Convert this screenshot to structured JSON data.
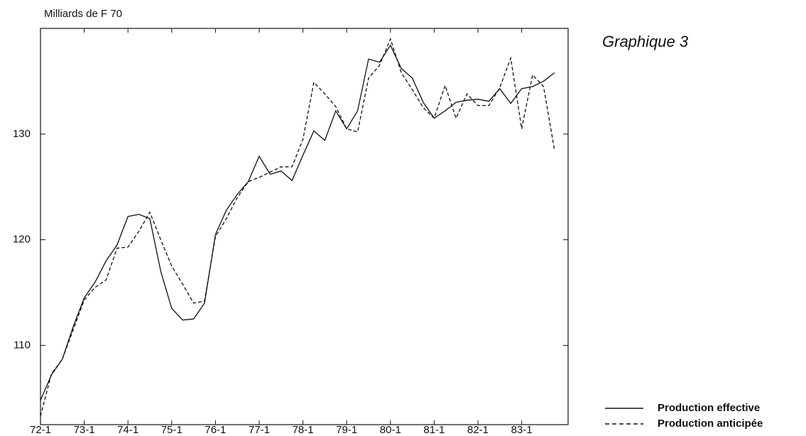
{
  "chart_data": {
    "type": "line",
    "title": "Graphique 3",
    "y_axis_label": "Milliards de F 70",
    "categories": [
      "72-1",
      null,
      null,
      null,
      "73-1",
      null,
      null,
      null,
      "74-1",
      null,
      null,
      null,
      "75-1",
      null,
      null,
      null,
      "76-1",
      null,
      null,
      null,
      "77-1",
      null,
      null,
      null,
      "78-1",
      null,
      null,
      null,
      "79-1",
      null,
      null,
      null,
      "80-1",
      null,
      null,
      null,
      "81-1",
      null,
      null,
      null,
      "82-1",
      null,
      null,
      null,
      "83-1",
      null,
      null,
      null
    ],
    "series": [
      {
        "name": "Production effective",
        "color": "#111111",
        "dash": false,
        "values": [
          104.8,
          107.2,
          108.7,
          111.8,
          114.5,
          116,
          118,
          119.5,
          122.2,
          122.4,
          122,
          117,
          113.5,
          112.4,
          112.5,
          114,
          120.5,
          122.8,
          124.3,
          125.5,
          127.9,
          126.2,
          126.5,
          125.6,
          128,
          130.3,
          129.4,
          132.2,
          130.5,
          132.2,
          137.1,
          136.8,
          138.4,
          136.2,
          135.3,
          133,
          131.5,
          132.2,
          133,
          133.2,
          133.3,
          133.1,
          134.3,
          132.9,
          134.3,
          134.5,
          135,
          135.8
        ]
      },
      {
        "name": "Production anticipée",
        "color": "#111111",
        "dash": true,
        "values": [
          103.3,
          107.3,
          108.7,
          111.5,
          114.3,
          115.5,
          116.2,
          119.2,
          119.3,
          120.8,
          122.6,
          120,
          117.5,
          115.8,
          114,
          114.2,
          120.3,
          122,
          124,
          125.5,
          125.9,
          126.4,
          126.9,
          126.9,
          129.5,
          134.9,
          133.8,
          132.6,
          130.5,
          130.2,
          135.3,
          136.5,
          139,
          135.8,
          134.2,
          132.5,
          131.5,
          134.6,
          131.5,
          133.8,
          132.7,
          132.7,
          134.4,
          137.2,
          130.5,
          135.6,
          134.5,
          128.5
        ]
      }
    ],
    "ylim": [
      102.5,
      140
    ],
    "yticks": [
      110,
      120,
      130
    ],
    "legend": "bottom-right"
  }
}
